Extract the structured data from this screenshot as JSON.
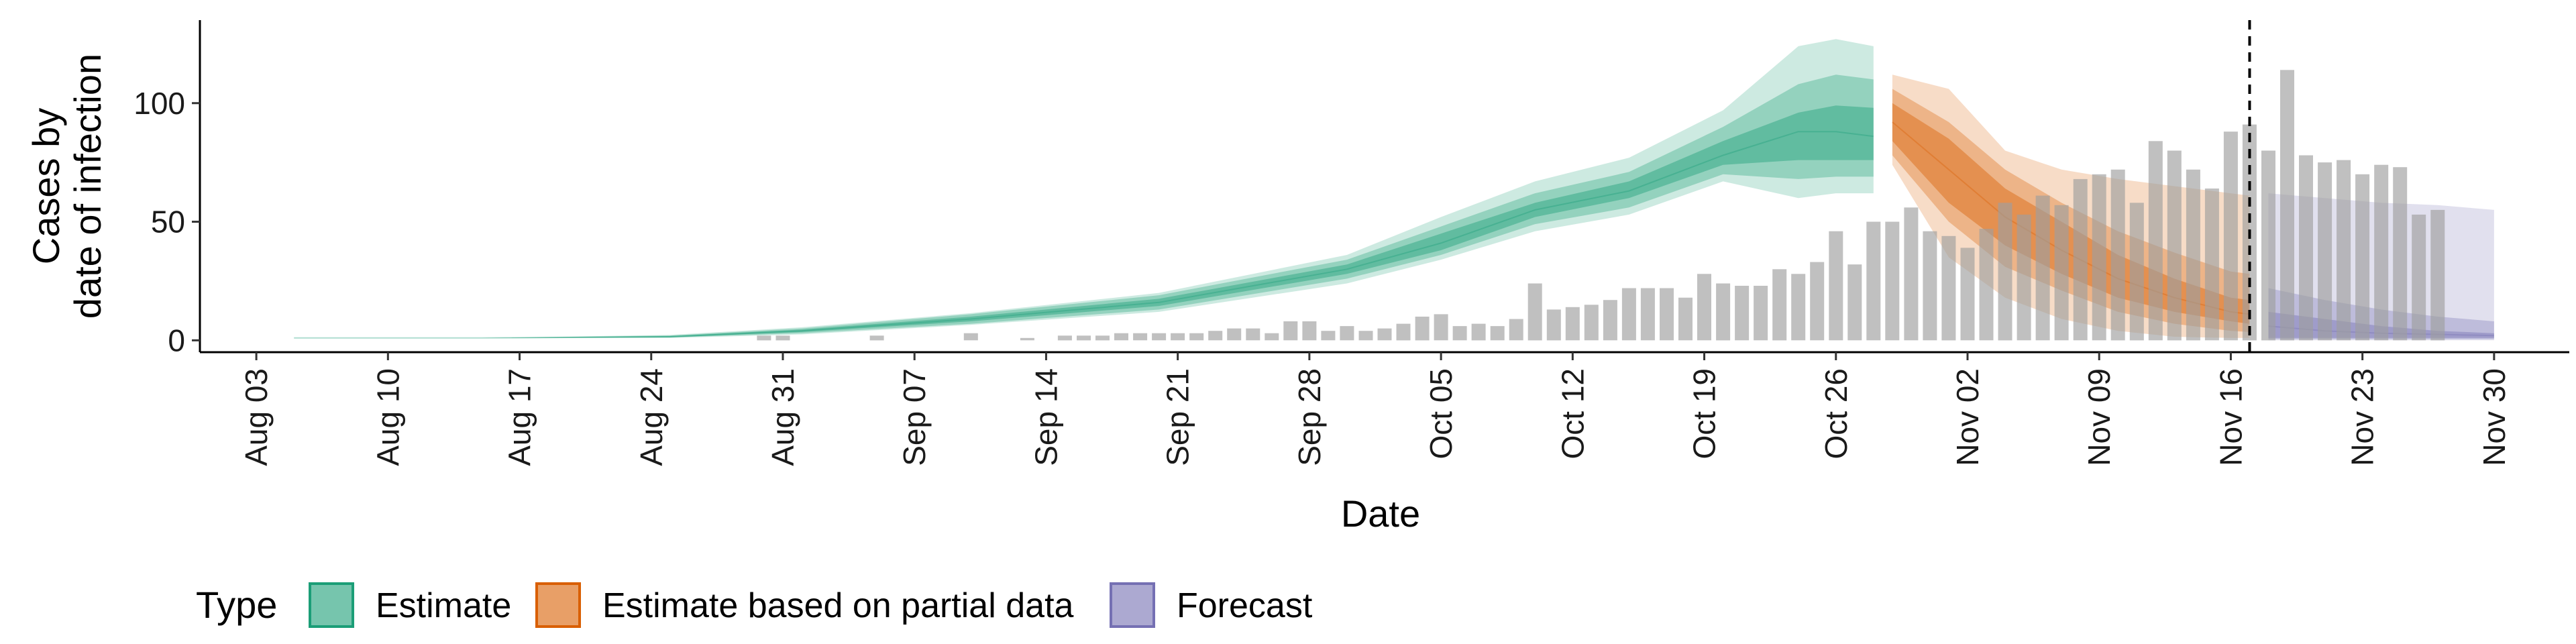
{
  "chart_data": {
    "type": "bar",
    "xlabel": "Date",
    "ylabel_lines": [
      "Cases by",
      "date of infection"
    ],
    "xlim": [
      "2020-07-31",
      "2020-12-04"
    ],
    "ylim": [
      -5,
      135
    ],
    "y_ticks": [
      0,
      50,
      100
    ],
    "x_ticks": [
      {
        "date": "2020-08-03",
        "label": "Aug 03"
      },
      {
        "date": "2020-08-10",
        "label": "Aug 10"
      },
      {
        "date": "2020-08-17",
        "label": "Aug 17"
      },
      {
        "date": "2020-08-24",
        "label": "Aug 24"
      },
      {
        "date": "2020-08-31",
        "label": "Aug 31"
      },
      {
        "date": "2020-09-07",
        "label": "Sep 07"
      },
      {
        "date": "2020-09-14",
        "label": "Sep 14"
      },
      {
        "date": "2020-09-21",
        "label": "Sep 21"
      },
      {
        "date": "2020-09-28",
        "label": "Sep 28"
      },
      {
        "date": "2020-10-05",
        "label": "Oct 05"
      },
      {
        "date": "2020-10-12",
        "label": "Oct 12"
      },
      {
        "date": "2020-10-19",
        "label": "Oct 19"
      },
      {
        "date": "2020-10-26",
        "label": "Oct 26"
      },
      {
        "date": "2020-11-02",
        "label": "Nov 02"
      },
      {
        "date": "2020-11-09",
        "label": "Nov 09"
      },
      {
        "date": "2020-11-16",
        "label": "Nov 16"
      },
      {
        "date": "2020-11-23",
        "label": "Nov 23"
      },
      {
        "date": "2020-11-30",
        "label": "Nov 30"
      }
    ],
    "vline_date": "2020-11-17",
    "bars_start_date": "2020-08-20",
    "bar_values": [
      0,
      0,
      0,
      0,
      0,
      0,
      0,
      0,
      0,
      0,
      2,
      2,
      0,
      0,
      0,
      0,
      2,
      0,
      0,
      0,
      0,
      3,
      0,
      0,
      1,
      0,
      2,
      2,
      2,
      3,
      3,
      3,
      3,
      3,
      4,
      5,
      5,
      3,
      8,
      8,
      4,
      6,
      4,
      5,
      7,
      10,
      11,
      6,
      7,
      6,
      9,
      24,
      13,
      14,
      15,
      17,
      22,
      22,
      22,
      18,
      28,
      24,
      23,
      23,
      30,
      28,
      33,
      46,
      32,
      50,
      50,
      56,
      46,
      44,
      39,
      47,
      58,
      53,
      61,
      57,
      68,
      70,
      72,
      58,
      84,
      80,
      72,
      64,
      88,
      91,
      80,
      114,
      78,
      75,
      76,
      70,
      74,
      73,
      53,
      55
    ],
    "series": [
      {
        "name": "Estimate",
        "color": "#1b9e77",
        "x": [
          "2020-08-05",
          "2020-08-15",
          "2020-08-25",
          "2020-09-01",
          "2020-09-10",
          "2020-09-20",
          "2020-09-30",
          "2020-10-05",
          "2020-10-10",
          "2020-10-15",
          "2020-10-20",
          "2020-10-24",
          "2020-10-26",
          "2020-10-28"
        ],
        "median": [
          1,
          1,
          1.5,
          4,
          9,
          16,
          30,
          41,
          55,
          63,
          78,
          88,
          88,
          86
        ],
        "inner": [
          [
            1,
            1
          ],
          [
            1,
            1
          ],
          [
            1.3,
            1.8
          ],
          [
            3.5,
            4.5
          ],
          [
            8,
            10
          ],
          [
            14.5,
            17.5
          ],
          [
            28,
            32
          ],
          [
            38,
            45
          ],
          [
            52,
            58
          ],
          [
            60,
            67
          ],
          [
            74,
            84
          ],
          [
            76,
            96
          ],
          [
            76,
            99
          ],
          [
            76,
            98
          ]
        ],
        "middle": [
          [
            1,
            1
          ],
          [
            1,
            1
          ],
          [
            1.2,
            2
          ],
          [
            3,
            5
          ],
          [
            7,
            11
          ],
          [
            13,
            19
          ],
          [
            26,
            34
          ],
          [
            36,
            48
          ],
          [
            49,
            62
          ],
          [
            56,
            71
          ],
          [
            70,
            90
          ],
          [
            68,
            108
          ],
          [
            69,
            112
          ],
          [
            69,
            110
          ]
        ],
        "outer": [
          [
            1,
            1
          ],
          [
            1,
            1
          ],
          [
            1,
            2.3
          ],
          [
            2.5,
            5.5
          ],
          [
            6.5,
            11.5
          ],
          [
            12,
            20
          ],
          [
            24,
            36
          ],
          [
            34,
            52
          ],
          [
            46,
            67
          ],
          [
            53,
            77
          ],
          [
            67,
            97
          ],
          [
            60,
            124
          ],
          [
            62,
            127
          ],
          [
            62,
            124
          ]
        ]
      },
      {
        "name": "Estimate based on partial data",
        "color": "#d95f02",
        "x": [
          "2020-10-29",
          "2020-11-01",
          "2020-11-04",
          "2020-11-07",
          "2020-11-10",
          "2020-11-13",
          "2020-11-16",
          "2020-11-17"
        ],
        "median": [
          92,
          72,
          52,
          38,
          26,
          18,
          12,
          11
        ],
        "inner": [
          [
            84,
            100
          ],
          [
            58,
            85
          ],
          [
            40,
            64
          ],
          [
            28,
            50
          ],
          [
            18,
            36
          ],
          [
            12,
            26
          ],
          [
            8,
            18
          ],
          [
            7,
            17
          ]
        ],
        "middle": [
          [
            78,
            106
          ],
          [
            50,
            92
          ],
          [
            31,
            72
          ],
          [
            21,
            58
          ],
          [
            12,
            46
          ],
          [
            7,
            37
          ],
          [
            4,
            29
          ],
          [
            3.5,
            28
          ]
        ],
        "outer": [
          [
            74,
            112
          ],
          [
            35,
            106
          ],
          [
            18,
            80
          ],
          [
            9,
            72
          ],
          [
            4,
            68
          ],
          [
            1.5,
            65
          ],
          [
            1,
            62
          ],
          [
            1,
            61
          ]
        ]
      },
      {
        "name": "Forecast",
        "color": "#7570b3",
        "x": [
          "2020-11-18",
          "2020-11-21",
          "2020-11-24",
          "2020-11-27",
          "2020-11-30"
        ],
        "median": [
          6,
          4,
          3,
          2.5,
          2
        ],
        "inner": [
          [
            1,
            12
          ],
          [
            1,
            9
          ],
          [
            1,
            6
          ],
          [
            1,
            4
          ],
          [
            1,
            3
          ]
        ],
        "middle": [
          [
            0.5,
            22
          ],
          [
            0.5,
            17
          ],
          [
            0.5,
            13
          ],
          [
            0.5,
            10
          ],
          [
            0.5,
            8
          ]
        ],
        "outer": [
          [
            0,
            62
          ],
          [
            0,
            60
          ],
          [
            0,
            58
          ],
          [
            0,
            57
          ],
          [
            0,
            55
          ]
        ]
      }
    ],
    "legend": {
      "title": "Type",
      "position": "bottom",
      "items": [
        {
          "label": "Estimate",
          "color": "#1b9e77"
        },
        {
          "label": "Estimate based on partial data",
          "color": "#d95f02"
        },
        {
          "label": "Forecast",
          "color": "#7570b3"
        }
      ]
    }
  }
}
